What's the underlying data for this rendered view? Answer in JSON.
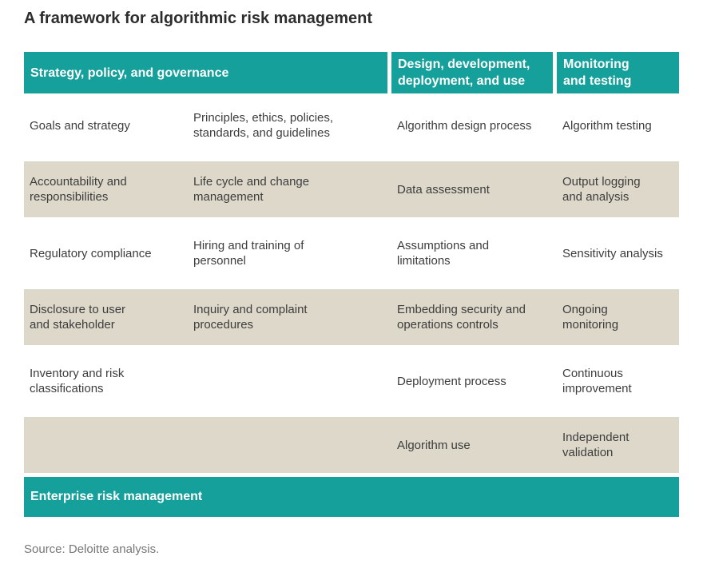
{
  "title": "A framework for algorithmic risk management",
  "colors": {
    "teal": "#16a09b",
    "beige": "#ddd8c9",
    "title_text": "#2d2d2d",
    "body_text": "#3d3d3d",
    "source_text": "#767676"
  },
  "table": {
    "headers": [
      {
        "label": "Strategy, policy, and governance"
      },
      {
        "label": "Design, development,\ndeployment, and use"
      },
      {
        "label": "Monitoring\nand testing"
      }
    ],
    "rows": [
      {
        "cells": [
          "Goals and strategy",
          "Principles, ethics, policies,\nstandards, and guidelines",
          "Algorithm design process",
          "Algorithm testing"
        ]
      },
      {
        "cells": [
          "Accountability and\nresponsibilities",
          "Life cycle and change\nmanagement",
          "Data assessment",
          "Output logging\nand analysis"
        ]
      },
      {
        "cells": [
          "Regulatory compliance",
          "Hiring and training of\npersonnel",
          "Assumptions and\nlimitations",
          "Sensitivity analysis"
        ]
      },
      {
        "cells": [
          "Disclosure to user\nand stakeholder",
          "Inquiry and complaint\nprocedures",
          "Embedding security and\noperations controls",
          "Ongoing\nmonitoring"
        ]
      },
      {
        "cells": [
          "Inventory and risk\nclassifications",
          "",
          "Deployment process",
          "Continuous\nimprovement"
        ]
      },
      {
        "cells": [
          "",
          "",
          "Algorithm use",
          "Independent\nvalidation"
        ]
      }
    ],
    "footer_bar": "Enterprise risk management"
  },
  "source": "Source: Deloitte analysis."
}
